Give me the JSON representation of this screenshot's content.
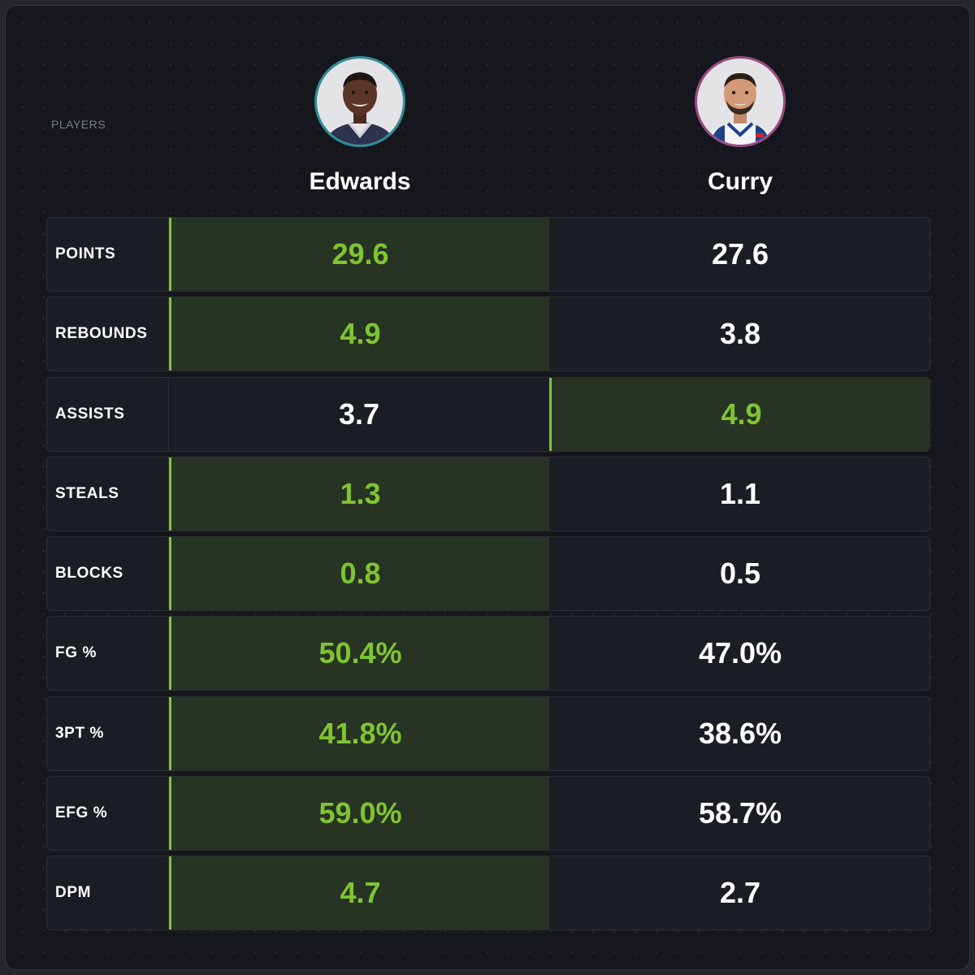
{
  "header": {
    "players_label": "PLAYERS"
  },
  "players": [
    {
      "name": "Edwards",
      "avatar_icon": "player-headshot-edwards",
      "ring_color": "#2e8d99"
    },
    {
      "name": "Curry",
      "avatar_icon": "player-headshot-curry",
      "ring_color": "#9a4a82"
    }
  ],
  "colors": {
    "highlight_text": "#7ec531",
    "highlight_bg": "#273423",
    "background": "#15171c"
  },
  "stats": [
    {
      "label": "POINTS",
      "p1": "29.6",
      "p2": "27.6",
      "leader": "p1"
    },
    {
      "label": "REBOUNDS",
      "p1": "4.9",
      "p2": "3.8",
      "leader": "p1"
    },
    {
      "label": "ASSISTS",
      "p1": "3.7",
      "p2": "4.9",
      "leader": "p2"
    },
    {
      "label": "STEALS",
      "p1": "1.3",
      "p2": "1.1",
      "leader": "p1"
    },
    {
      "label": "BLOCKS",
      "p1": "0.8",
      "p2": "0.5",
      "leader": "p1"
    },
    {
      "label": "FG %",
      "p1": "50.4%",
      "p2": "47.0%",
      "leader": "p1"
    },
    {
      "label": "3PT %",
      "p1": "41.8%",
      "p2": "38.6%",
      "leader": "p1"
    },
    {
      "label": "EFG %",
      "p1": "59.0%",
      "p2": "58.7%",
      "leader": "p1"
    },
    {
      "label": "DPM",
      "p1": "4.7",
      "p2": "2.7",
      "leader": "p1"
    }
  ]
}
